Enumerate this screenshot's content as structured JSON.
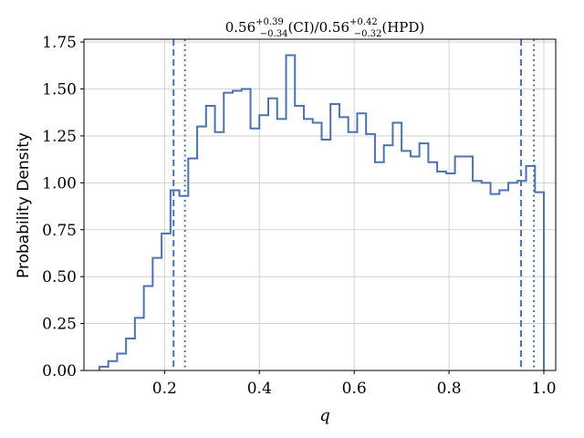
{
  "chart_data": {
    "type": "histogram-step",
    "title": {
      "median_ci": "0.56",
      "ci_plus": "+0.39",
      "ci_minus": "−0.34",
      "ci_label": "(CI)/",
      "median_hpd": "0.56",
      "hpd_plus": "+0.42",
      "hpd_minus": "−0.32",
      "hpd_label": "(HPD)"
    },
    "xlabel": "q",
    "ylabel": "Probability Density",
    "xlim": [
      0.03,
      1.025
    ],
    "ylim": [
      0,
      1.765
    ],
    "xticks": [
      0.2,
      0.4,
      0.6,
      0.8,
      1.0
    ],
    "xtick_labels": [
      "0.2",
      "0.4",
      "0.6",
      "0.8",
      "1.0"
    ],
    "yticks": [
      0,
      0.25,
      0.5,
      0.75,
      1.0,
      1.25,
      1.5,
      1.75
    ],
    "ytick_labels": [
      "0.00",
      "0.25",
      "0.50",
      "0.75",
      "1.00",
      "1.25",
      "1.50",
      "1.75"
    ],
    "grid": true,
    "series_color": "#4c72b0",
    "bin_edges": [
      0.0625,
      0.0813,
      0.1,
      0.1188,
      0.1375,
      0.1563,
      0.175,
      0.1938,
      0.2125,
      0.2313,
      0.25,
      0.2688,
      0.2875,
      0.3063,
      0.325,
      0.3438,
      0.3625,
      0.3813,
      0.4,
      0.4188,
      0.4375,
      0.4563,
      0.475,
      0.4938,
      0.5125,
      0.5313,
      0.55,
      0.5688,
      0.5875,
      0.6063,
      0.625,
      0.6438,
      0.6625,
      0.6813,
      0.7,
      0.7188,
      0.7375,
      0.7563,
      0.775,
      0.7938,
      0.8125,
      0.8313,
      0.85,
      0.8688,
      0.8875,
      0.9063,
      0.925,
      0.9438,
      0.9625,
      0.9813,
      1.0
    ],
    "densities": [
      0.02,
      0.05,
      0.09,
      0.17,
      0.28,
      0.45,
      0.6,
      0.73,
      0.96,
      0.93,
      1.13,
      1.3,
      1.41,
      1.27,
      1.48,
      1.49,
      1.5,
      1.29,
      1.36,
      1.45,
      1.34,
      1.68,
      1.41,
      1.34,
      1.32,
      1.23,
      1.42,
      1.35,
      1.27,
      1.37,
      1.26,
      1.11,
      1.2,
      1.32,
      1.17,
      1.14,
      1.21,
      1.11,
      1.06,
      1.05,
      1.14,
      1.14,
      1.01,
      1.0,
      0.94,
      0.96,
      1.0,
      1.01,
      1.09,
      0.95
    ],
    "vlines": [
      {
        "x": 0.219,
        "style": "dashed"
      },
      {
        "x": 0.243,
        "style": "dotted"
      },
      {
        "x": 0.952,
        "style": "dashed"
      },
      {
        "x": 0.979,
        "style": "dotted"
      }
    ]
  }
}
